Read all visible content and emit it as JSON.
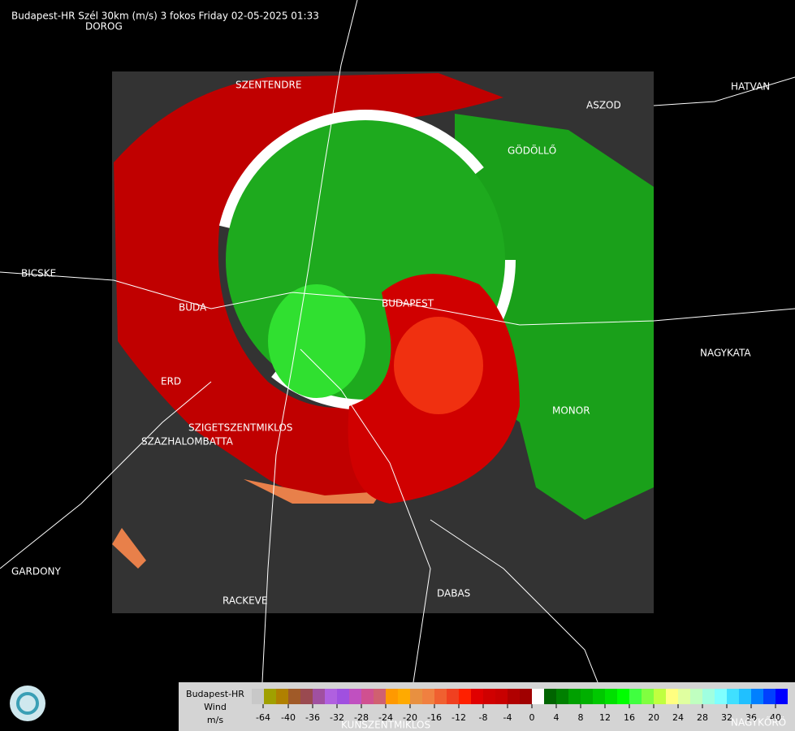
{
  "header": {
    "title": "Budapest-HR Szél 30km (m/s) 3 fokos Friday 02-05-2025 01:33"
  },
  "places": [
    "DOROG",
    "SZENTENDRE",
    "HATVAN",
    "ASZOD",
    "GÖDÖLLŐ",
    "BICSKE",
    "BUDA",
    "BUDAPEST",
    "ERD",
    "SZIGETSZENTMIKLOS",
    "SZAZHALOMBATTA",
    "NAGYKATA",
    "MONOR",
    "GARDONY",
    "RACKEVE",
    "DABAS",
    "KUNSZENTMIKLOS",
    "NAGYKŐRÖ"
  ],
  "legend": {
    "labels": [
      "Budapest-HR",
      "Wind",
      "m/s"
    ],
    "ticks": [
      -64,
      -40,
      -36,
      -32,
      -28,
      -24,
      -20,
      -16,
      -12,
      -8,
      -4,
      0,
      4,
      8,
      12,
      16,
      20,
      24,
      28,
      32,
      36,
      40
    ],
    "colors": [
      "#c8c8c8",
      "#a0a000",
      "#b08000",
      "#a05a28",
      "#9a4a50",
      "#a050a0",
      "#b060e0",
      "#a050e0",
      "#c050c0",
      "#d05090",
      "#d06070",
      "#ff9900",
      "#ffaa00",
      "#e89040",
      "#f08040",
      "#f06030",
      "#f04020",
      "#ff2000",
      "#e00000",
      "#d00000",
      "#c80000",
      "#b00000",
      "#a00000",
      "#ffffff",
      "#006400",
      "#008000",
      "#00a000",
      "#00b000",
      "#00c800",
      "#00e000",
      "#00ff00",
      "#40ff40",
      "#80ff40",
      "#c0ff40",
      "#ffff80",
      "#e0ffa0",
      "#c0ffc0",
      "#a0ffe0",
      "#80ffff",
      "#40e0ff",
      "#20c0ff",
      "#0080ff",
      "#0040ff",
      "#0000ff"
    ]
  }
}
